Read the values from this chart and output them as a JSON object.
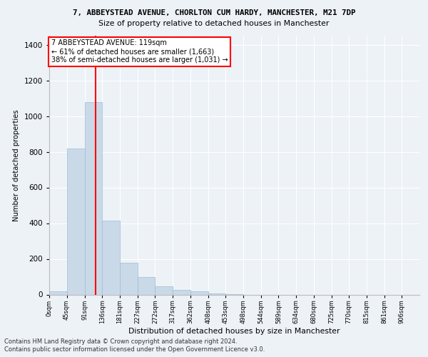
{
  "title1": "7, ABBEYSTEAD AVENUE, CHORLTON CUM HARDY, MANCHESTER, M21 7DP",
  "title2": "Size of property relative to detached houses in Manchester",
  "xlabel": "Distribution of detached houses by size in Manchester",
  "ylabel": "Number of detached properties",
  "bin_labels": [
    "0sqm",
    "45sqm",
    "91sqm",
    "136sqm",
    "181sqm",
    "227sqm",
    "272sqm",
    "317sqm",
    "362sqm",
    "408sqm",
    "453sqm",
    "498sqm",
    "544sqm",
    "589sqm",
    "634sqm",
    "680sqm",
    "725sqm",
    "770sqm",
    "815sqm",
    "861sqm",
    "906sqm"
  ],
  "bar_heights": [
    20,
    820,
    1080,
    415,
    180,
    98,
    48,
    28,
    18,
    5,
    1,
    0,
    0,
    0,
    0,
    0,
    0,
    0,
    0,
    0
  ],
  "bar_color": "#c9d9e8",
  "bar_edgecolor": "#a0bcd4",
  "annotation_text": "7 ABBEYSTEAD AVENUE: 119sqm\n← 61% of detached houses are smaller (1,663)\n38% of semi-detached houses are larger (1,031) →",
  "vline_color": "red",
  "vline_x": 119,
  "ylim": [
    0,
    1450
  ],
  "yticks": [
    0,
    200,
    400,
    600,
    800,
    1000,
    1200,
    1400
  ],
  "footer1": "Contains HM Land Registry data © Crown copyright and database right 2024.",
  "footer2": "Contains public sector information licensed under the Open Government Licence v3.0.",
  "bg_color": "#edf2f7",
  "plot_bg_color": "#edf2f7"
}
